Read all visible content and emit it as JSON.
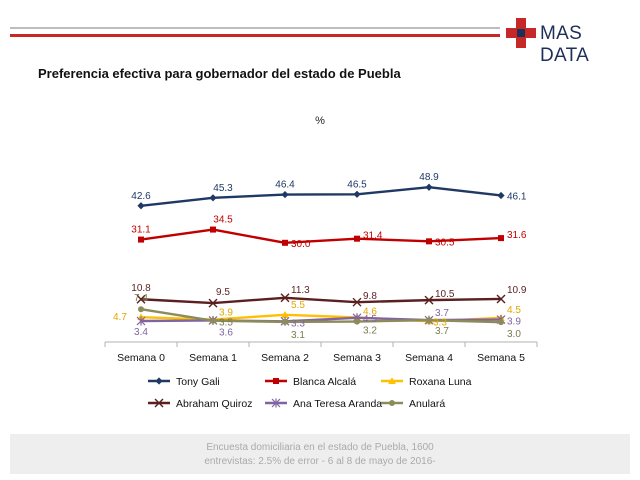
{
  "brand": {
    "logo_text": "MAS DATA",
    "colors": {
      "red": "#c62828",
      "navy": "#1f2f58",
      "gray": "#bdbdbd"
    }
  },
  "title": "Preferencia efectiva para gobernador del estado de Puebla",
  "footer": {
    "text": "Encuesta domiciliaria en el estado de Puebla, 1600\nentrevistas: 2.5% de error - 6 al 8 de mayo de 2016-"
  },
  "chart_data": {
    "type": "line",
    "title": "%",
    "xlabel": "",
    "ylabel": "",
    "ylim": [
      0,
      55
    ],
    "grid": false,
    "legend": "bottom",
    "categories": [
      "Semana 0",
      "Semana 1",
      "Semana 2",
      "Semana 3",
      "Semana 4",
      "Semana 5"
    ],
    "series": [
      {
        "name": "Tony Gali",
        "color": "#1f3864",
        "marker": "diamond",
        "values": [
          42.6,
          45.3,
          46.4,
          46.5,
          48.9,
          46.1
        ]
      },
      {
        "name": "Blanca Alcalá",
        "color": "#c00000",
        "marker": "square",
        "values": [
          31.1,
          34.5,
          30.0,
          31.4,
          30.5,
          31.6
        ]
      },
      {
        "name": "Roxana Luna",
        "color": "#ffc000",
        "marker": "triangle",
        "values": [
          4.7,
          3.9,
          5.5,
          4.6,
          3.3,
          4.5
        ]
      },
      {
        "name": "Abraham Quiroz",
        "color": "#5b1f1f",
        "marker": "x",
        "values": [
          10.8,
          9.5,
          11.3,
          9.8,
          10.5,
          10.9
        ]
      },
      {
        "name": "Ana Teresa Aranda",
        "color": "#8064a2",
        "marker": "star",
        "values": [
          3.4,
          3.6,
          3.3,
          4.5,
          3.7,
          3.9
        ]
      },
      {
        "name": "Anulará",
        "color": "#8c8c5a",
        "marker": "circle",
        "values": [
          7.4,
          3.5,
          3.1,
          3.2,
          3.7,
          3.0
        ]
      }
    ]
  }
}
